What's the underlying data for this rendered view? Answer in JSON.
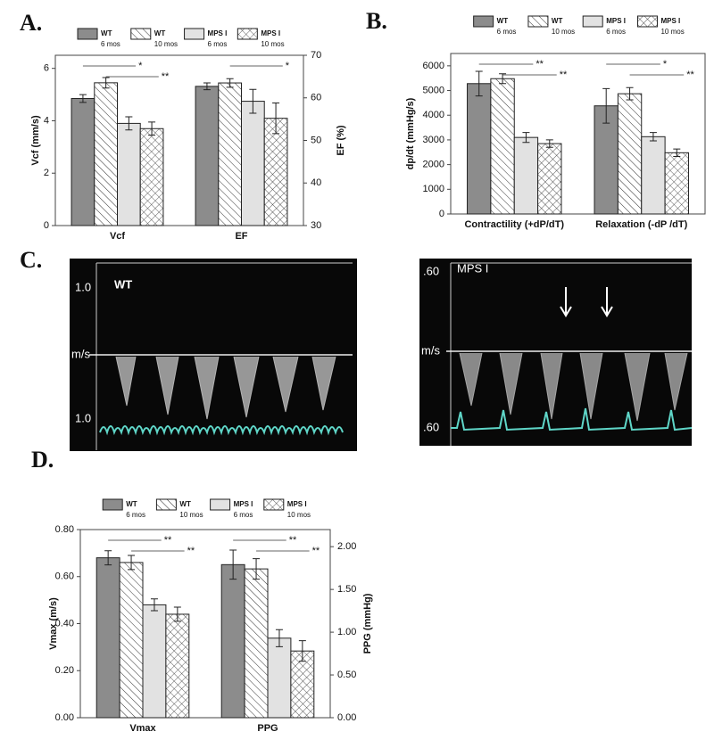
{
  "chart_data": [
    {
      "type": "bar",
      "panel": "A.",
      "categories": [
        "Vcf",
        "EF"
      ],
      "category_axis": [
        "y",
        "y2"
      ],
      "ylabel": "Vcf (mm/s)",
      "y2label": "EF (%)",
      "ylim": [
        0,
        6.5
      ],
      "yticks": [
        0,
        2,
        4,
        6
      ],
      "y2lim": [
        30,
        70
      ],
      "y2ticks": [
        30,
        40,
        50,
        60,
        70
      ],
      "series": [
        {
          "name": "WT",
          "age": "6 mos",
          "color": "#8c8c8c",
          "pattern": "solid",
          "values": [
            4.85,
            62.7
          ],
          "errors": [
            0.15,
            0.8
          ]
        },
        {
          "name": "WT",
          "age": "10 mos",
          "color": "#ffffff",
          "pattern": "hatch",
          "values": [
            5.45,
            63.5
          ],
          "errors": [
            0.2,
            1.0
          ]
        },
        {
          "name": "MPS I",
          "age": "6 mos",
          "color": "#e2e2e2",
          "pattern": "solid",
          "values": [
            3.9,
            59.2
          ],
          "errors": [
            0.25,
            2.8
          ]
        },
        {
          "name": "MPS I",
          "age": "10 mos",
          "color": "#ffffff",
          "pattern": "cross",
          "values": [
            3.7,
            55.2
          ],
          "errors": [
            0.25,
            3.6
          ]
        }
      ],
      "significance": [
        [
          "*",
          "**"
        ],
        [
          "*"
        ]
      ]
    },
    {
      "type": "bar",
      "panel": "B.",
      "categories": [
        "Contractility (+dP/dT)",
        "Relaxation (-dP /dT)"
      ],
      "category_axis": [
        "y",
        "y"
      ],
      "ylabel": "dp/dt (mmHg/s)",
      "ylim": [
        0,
        6500
      ],
      "yticks": [
        0,
        1000,
        2000,
        3000,
        4000,
        5000,
        6000
      ],
      "series": [
        {
          "name": "WT",
          "age": "6 mos",
          "color": "#8c8c8c",
          "pattern": "solid",
          "values": [
            5280,
            4380
          ],
          "errors": [
            500,
            700
          ]
        },
        {
          "name": "WT",
          "age": "10 mos",
          "color": "#ffffff",
          "pattern": "hatch",
          "values": [
            5480,
            4870
          ],
          "errors": [
            200,
            250
          ]
        },
        {
          "name": "MPS I",
          "age": "6 mos",
          "color": "#e2e2e2",
          "pattern": "solid",
          "values": [
            3100,
            3130
          ],
          "errors": [
            200,
            170
          ]
        },
        {
          "name": "MPS I",
          "age": "10 mos",
          "color": "#ffffff",
          "pattern": "cross",
          "values": [
            2850,
            2480
          ],
          "errors": [
            150,
            150
          ]
        }
      ],
      "significance": [
        [
          "**",
          "**"
        ],
        [
          "*",
          "**"
        ]
      ]
    },
    {
      "type": "bar",
      "panel": "D.",
      "categories": [
        "Vmax",
        "PPG"
      ],
      "category_axis": [
        "y",
        "y2"
      ],
      "ylabel": "Vmax (m/s)",
      "y2label": "PPG (mmHg)",
      "ylim": [
        0,
        0.8
      ],
      "yticks": [
        {
          "value": 0,
          "label": "0.00"
        },
        {
          "value": 0.2,
          "label": "0.20"
        },
        {
          "value": 0.4,
          "label": "0.40"
        },
        {
          "value": 0.6,
          "label": "0.60"
        },
        {
          "value": 0.8,
          "label": "0.80"
        }
      ],
      "y2lim": [
        0,
        2.2
      ],
      "y2ticks": [
        {
          "value": 0,
          "label": "0.00"
        },
        {
          "value": 0.5,
          "label": "0.50"
        },
        {
          "value": 1,
          "label": "1.00"
        },
        {
          "value": 1.5,
          "label": "1.50"
        },
        {
          "value": 2,
          "label": "2.00"
        }
      ],
      "series": [
        {
          "name": "WT",
          "age": "6 mos",
          "color": "#8c8c8c",
          "pattern": "solid",
          "values": [
            0.68,
            1.79
          ],
          "errors": [
            0.03,
            0.17
          ]
        },
        {
          "name": "WT",
          "age": "10 mos",
          "color": "#ffffff",
          "pattern": "hatch",
          "values": [
            0.66,
            1.74
          ],
          "errors": [
            0.03,
            0.12
          ]
        },
        {
          "name": "MPS I",
          "age": "6 mos",
          "color": "#e2e2e2",
          "pattern": "solid",
          "values": [
            0.48,
            0.93
          ],
          "errors": [
            0.025,
            0.1
          ]
        },
        {
          "name": "MPS I",
          "age": "10 mos",
          "color": "#ffffff",
          "pattern": "cross",
          "values": [
            0.44,
            0.78
          ],
          "errors": [
            0.03,
            0.12
          ]
        }
      ],
      "significance": [
        [
          "**",
          "**"
        ],
        [
          "**",
          "**"
        ]
      ]
    }
  ],
  "doppler": {
    "panel": "C.",
    "images": [
      {
        "title": "WT",
        "top_label": "1.0",
        "unit": "m/s",
        "bottom_label": "1.0"
      },
      {
        "title": "MPS I",
        "top_label": ".60",
        "unit": "m/s",
        "bottom_label": ".60"
      }
    ]
  }
}
